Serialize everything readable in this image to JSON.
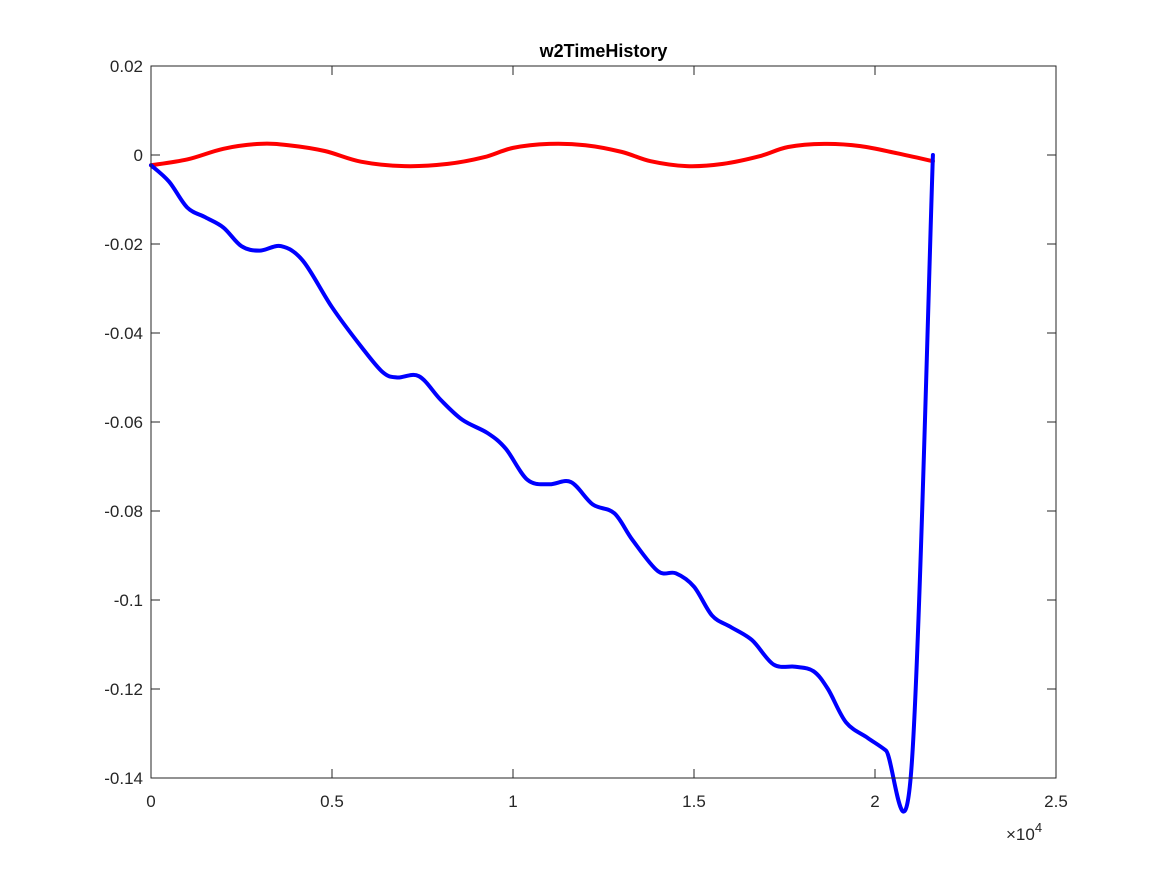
{
  "chart_data": {
    "type": "line",
    "title": "w2TimeHistory",
    "xlabel": "",
    "ylabel": "",
    "xlim": [
      0,
      25000
    ],
    "ylim": [
      -0.14,
      0.02
    ],
    "x_exponent_label": "×10",
    "x_exponent_power": "4",
    "x_ticks": [
      0,
      5000,
      10000,
      15000,
      20000,
      25000
    ],
    "x_tick_labels": [
      "0",
      "0.5",
      "1",
      "1.5",
      "2",
      "2.5"
    ],
    "y_ticks": [
      0.02,
      0,
      -0.02,
      -0.04,
      -0.06,
      -0.08,
      -0.1,
      -0.12,
      -0.14
    ],
    "y_tick_labels": [
      "0.02",
      "0",
      "-0.02",
      "-0.04",
      "-0.06",
      "-0.08",
      "-0.1",
      "-0.12",
      "-0.14"
    ],
    "grid": false,
    "box": true,
    "series": [
      {
        "color": "#ff0000",
        "x": [
          0,
          1000,
          2000,
          3000,
          3800,
          4800,
          5800,
          7000,
          8200,
          9200,
          10000,
          11000,
          12000,
          13000,
          13800,
          14800,
          15800,
          16800,
          17600,
          18600,
          19600,
          20600,
          21600
        ],
        "y": [
          -0.0023,
          -0.001,
          0.0014,
          0.0025,
          0.0022,
          0.0009,
          -0.0015,
          -0.0025,
          -0.002,
          -0.0005,
          0.0016,
          0.0025,
          0.0022,
          0.0007,
          -0.0014,
          -0.0025,
          -0.002,
          -0.0003,
          0.0018,
          0.0025,
          0.002,
          0.0004,
          -0.0014
        ]
      },
      {
        "color": "#0000ff",
        "x": [
          0,
          500,
          1000,
          1500,
          2000,
          2500,
          3000,
          3600,
          4200,
          5000,
          5800,
          6400,
          6800,
          7400,
          8000,
          8600,
          9300,
          9800,
          10400,
          11000,
          11600,
          12200,
          12800,
          13300,
          14000,
          14500,
          15000,
          15500,
          16000,
          16600,
          17200,
          17800,
          18300,
          18700,
          19200,
          19800,
          20300,
          21000,
          21600
        ],
        "y": [
          -0.0023,
          -0.006,
          -0.0118,
          -0.014,
          -0.0163,
          -0.0205,
          -0.0215,
          -0.0205,
          -0.0238,
          -0.0342,
          -0.043,
          -0.0488,
          -0.05,
          -0.0497,
          -0.055,
          -0.0595,
          -0.0625,
          -0.066,
          -0.073,
          -0.074,
          -0.0735,
          -0.0785,
          -0.0805,
          -0.0865,
          -0.0935,
          -0.094,
          -0.097,
          -0.1035,
          -0.106,
          -0.109,
          -0.1145,
          -0.115,
          -0.116,
          -0.12,
          -0.1275,
          -0.131,
          -0.1338,
          -0.1385,
          0
        ]
      }
    ]
  }
}
